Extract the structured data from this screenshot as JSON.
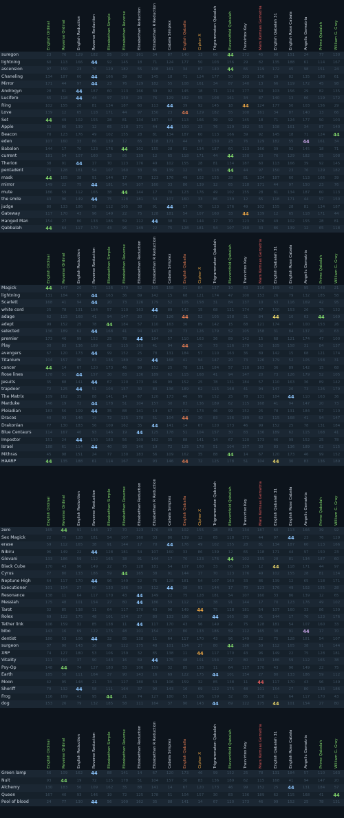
{
  "columns": [
    {
      "name": "English Ordinal",
      "color": "#7fd36a"
    },
    {
      "name": "Reverse Ordinal",
      "color": "#7fd36a"
    },
    {
      "name": "English Reduction",
      "color": "#cfd8e3"
    },
    {
      "name": "Reverse Reduction",
      "color": "#cfd8e3"
    },
    {
      "name": "Elizabethan Simple",
      "color": "#7fd36a"
    },
    {
      "name": "Elizabethan Reverse",
      "color": "#7fd36a"
    },
    {
      "name": "Elizabethan Reduction",
      "color": "#cfd8e3"
    },
    {
      "name": "Elizabethan R Reduction",
      "color": "#cfd8e3"
    },
    {
      "name": "Cabala Simplex",
      "color": "#cfd8e3"
    },
    {
      "name": "English Qaballa",
      "color": "#e07b52"
    },
    {
      "name": "Cipher X",
      "color": "#e8a445"
    },
    {
      "name": "Trigrammaton Qabalah",
      "color": "#cfd8e3"
    },
    {
      "name": "Eleventfold Qabalah",
      "color": "#7fd36a"
    },
    {
      "name": "Trasvirtox Key",
      "color": "#cfd8e3"
    },
    {
      "name": "Mars Kemsas Gematria",
      "color": "#e05a5a"
    },
    {
      "name": "English Qabalah 31",
      "color": "#cfd8e3"
    },
    {
      "name": "English Rose Cabala",
      "color": "#cfd8e3"
    },
    {
      "name": "Angelic Gematria",
      "color": "#cfd8e3"
    },
    {
      "name": "Prime Qabalah",
      "color": "#7fd36a"
    },
    {
      "name": "William G. Gray",
      "color": "#7fd36a"
    }
  ],
  "highlight_colors": {
    "green": "#7fd36a",
    "blue": "#8fc7ff",
    "orange": "#e8a445",
    "salmon": "#e07b52",
    "red": "#e05a5a",
    "lavender": "#c9a6e8",
    "yellow": "#e6d36a"
  },
  "sections": [
    {
      "rows": [
        {
          "label": "suregon",
          "hl": {
            "12": "44"
          }
        },
        {
          "label": "lightning",
          "hl": {
            "3": "44"
          }
        },
        {
          "label": "ascension",
          "hl": {
            "12": "44"
          }
        },
        {
          "label": "Chaneling",
          "hl": {
            "3": "44"
          }
        },
        {
          "label": "Mirror",
          "hl": {
            "3": "44"
          }
        },
        {
          "label": "Androgyn",
          "hl": {
            "2": "44"
          }
        },
        {
          "label": "Lucifero",
          "hl": {
            "2": "44"
          }
        },
        {
          "label": "Ring",
          "hl": {
            "8": "44",
            "13": "44"
          }
        },
        {
          "label": "Love",
          "hl": {
            "9": "44"
          }
        },
        {
          "label": "Set",
          "hl": {
            "0": "44"
          }
        },
        {
          "label": "Apple",
          "hl": {
            "8": "44"
          }
        },
        {
          "label": "Beacon",
          "hl": {
            "19": "44"
          }
        },
        {
          "label": "eden",
          "hl": {
            "17": "44"
          }
        },
        {
          "label": "Babalon",
          "hl": {
            "5": "44"
          }
        },
        {
          "label": "current",
          "hl": {
            "12": "44"
          }
        },
        {
          "label": "Therion",
          "hl": {
            "2": "44"
          }
        },
        {
          "label": "pentadent",
          "hl": {
            "12": "44"
          }
        },
        {
          "label": "mask",
          "hl": {
            "0": "44"
          }
        },
        {
          "label": "mirror",
          "hl": {
            "3": "44"
          }
        },
        {
          "label": "mute",
          "hl": {
            "5": "44"
          }
        },
        {
          "label": "the smile",
          "hl": {
            "3": "44"
          }
        },
        {
          "label": "judge",
          "hl": {
            "8": "44"
          }
        },
        {
          "label": "Gateway",
          "hl": {
            "13": "44"
          }
        },
        {
          "label": "Hanged Man",
          "hl": {
            "7": "44"
          }
        },
        {
          "label": "Qabbalah",
          "hl": {
            "0": "44"
          }
        }
      ]
    },
    {
      "rows": [
        {
          "label": "Magick",
          "hl": {
            "0": "44"
          }
        },
        {
          "label": "lightning",
          "hl": {
            "3": "44"
          }
        },
        {
          "label": "Scarlett",
          "hl": {
            "3": "44"
          }
        },
        {
          "label": "white cord",
          "hl": {
            "7": "44"
          }
        },
        {
          "label": "adage",
          "hl": {
            "9": "44",
            "15": "44",
            "18": "44"
          }
        },
        {
          "label": "adept",
          "hl": {
            "4": "44"
          }
        },
        {
          "label": "selected",
          "hl": {
            "3": "44"
          }
        },
        {
          "label": "premier",
          "hl": {
            "6": "44"
          }
        },
        {
          "label": "Play",
          "hl": {
            "9": "44"
          }
        },
        {
          "label": "avengers",
          "hl": {
            "3": "44"
          }
        },
        {
          "label": "Titanium",
          "hl": {
            "7": "44"
          }
        },
        {
          "label": "cancer",
          "hl": {
            "0": "44"
          }
        },
        {
          "label": "Rose lines",
          "hl": {
            "2": "44"
          }
        },
        {
          "label": "Jesuits",
          "hl": {
            "3": "44"
          }
        },
        {
          "label": "trapdoor",
          "hl": {
            "2": "44"
          }
        },
        {
          "label": "The Matrix",
          "hl": {
            "16": "44"
          }
        },
        {
          "label": "Marduke",
          "hl": {
            "3": "44"
          }
        },
        {
          "label": "Pleiadian",
          "hl": {
            "3": "44"
          }
        },
        {
          "label": "Dracos",
          "hl": {
            "9": "44"
          }
        },
        {
          "label": "Drakonian",
          "hl": {
            "7": "44"
          }
        },
        {
          "label": "Blue Centaurs",
          "hl": {
            "6": "44"
          }
        },
        {
          "label": "Impostor",
          "hl": {
            "2": "44"
          }
        },
        {
          "label": "Israel",
          "hl": {
            "3": "44"
          }
        },
        {
          "label": "Mithras",
          "hl": {
            "12": "44"
          }
        },
        {
          "label": "HAARP",
          "hl": {
            "0": "44",
            "9": "44",
            "15": "44"
          }
        }
      ]
    },
    {
      "rows": [
        {
          "label": "zero",
          "hl": {
            "1": "44"
          }
        },
        {
          "label": "Sex Magick",
          "hl": {
            "16": "44"
          }
        },
        {
          "label": "erase",
          "hl": {
            "8": "44"
          }
        },
        {
          "label": "Nibiru",
          "hl": {
            "3": "44"
          }
        },
        {
          "label": "Glovani",
          "hl": {
            "12": "44"
          }
        },
        {
          "label": "Black Cube",
          "hl": {
            "15": "44"
          }
        },
        {
          "label": "Cyrus",
          "hl": {
            "5": "44"
          }
        },
        {
          "label": "Neptune High",
          "hl": {
            "3": "44"
          }
        },
        {
          "label": "Executioner",
          "hl": {
            "8": "44"
          }
        },
        {
          "label": "Resonance",
          "hl": {
            "6": "44"
          }
        },
        {
          "label": "Messiah",
          "hl": {
            "6": "44"
          }
        },
        {
          "label": "Tarot",
          "hl": {
            "10": "44"
          }
        },
        {
          "label": "Rolex",
          "hl": {
            "11": "44"
          }
        },
        {
          "label": "Tether link",
          "hl": {
            "6": "44"
          }
        },
        {
          "label": "bibo",
          "hl": {
            "17": "44"
          }
        },
        {
          "label": "dentist",
          "hl": {
            "3": "44"
          }
        },
        {
          "label": "surgeon",
          "hl": {
            "12": "44"
          }
        },
        {
          "label": "XRP",
          "hl": {
            "10": "44"
          }
        },
        {
          "label": "Vitality",
          "hl": {
            "7": "44"
          }
        },
        {
          "label": "Psy-Op",
          "hl": {
            "1": "44"
          }
        },
        {
          "label": "Earth",
          "hl": {
            "11": "44"
          }
        },
        {
          "label": "Moon",
          "hl": {
            "14": "44"
          }
        },
        {
          "label": "Sheriff",
          "hl": {
            "2": "44"
          }
        },
        {
          "label": "Frog",
          "hl": {
            "4": "44"
          }
        },
        {
          "label": "dog",
          "hl": {
            "11": "44",
            "15": "44"
          }
        }
      ]
    },
    {
      "rows": [
        {
          "label": "Green lamp",
          "hl": {
            "3": "44"
          }
        },
        {
          "label": "Nuit",
          "hl": {
            "1": "44"
          }
        },
        {
          "label": "Alchemy",
          "hl": {
            "16": "44"
          }
        },
        {
          "label": "Queen",
          "hl": {
            "19": "44"
          }
        },
        {
          "label": "Pool of blood",
          "hl": {
            "3": "44"
          }
        }
      ]
    }
  ]
}
